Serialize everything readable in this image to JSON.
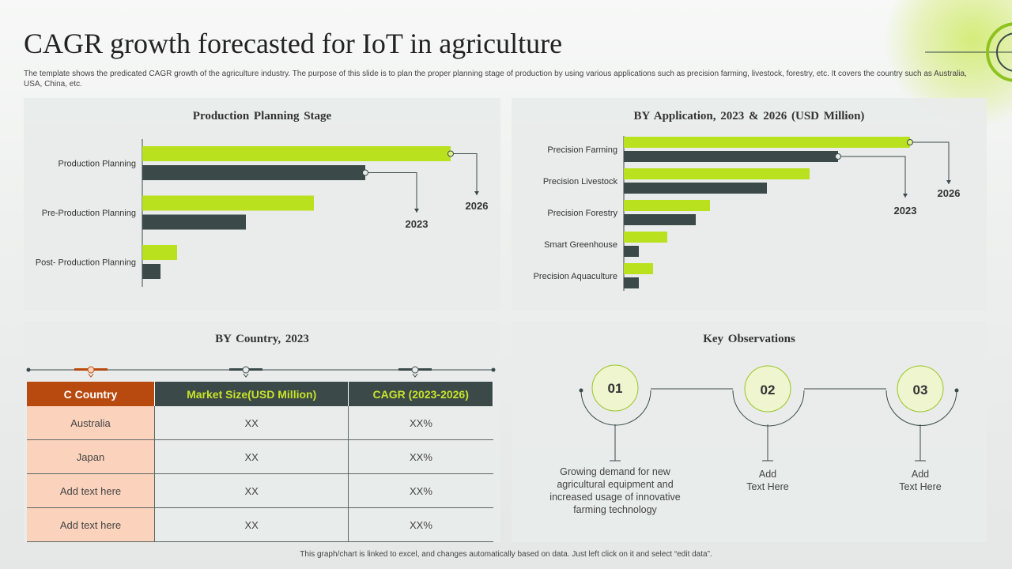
{
  "title": "CAGR growth forecasted for IoT in agriculture",
  "subtitle": "The template  shows the predicated CAGR growth of the agriculture industry. The purpose of this slide is to plan the proper planning stage of production by using various applications such as precision farming, livestock, forestry, etc. It covers the country such as Australia,  USA, China, etc.",
  "footer": "This graph/chart is linked to excel, and changes automatically based on data. Just left click on it and select “edit data”.",
  "colors": {
    "series_2026": "#b9e11e",
    "series_2023": "#3b4a48",
    "header_orange": "#b94a0f",
    "cell_peach": "#fbd3bd",
    "obs_circle": "#eef5cf"
  },
  "chart_data": [
    {
      "type": "bar",
      "orientation": "horizontal",
      "title": "Production  Planning  Stage",
      "categories": [
        "Production Planning",
        "Pre-Production Planning",
        "Post- Production Planning"
      ],
      "series": [
        {
          "name": "2026",
          "values": [
            390,
            217,
            44
          ]
        },
        {
          "name": "2023",
          "values": [
            282,
            131,
            23
          ]
        }
      ],
      "xlim": [
        0,
        420
      ],
      "annotations": [
        "2026",
        "2023"
      ]
    },
    {
      "type": "bar",
      "orientation": "horizontal",
      "title": "BY Application,  2023 & 2026 (USD Million)",
      "categories": [
        "Precision Farming",
        "Precision Livestock",
        "Precision Forestry",
        "Smart Greenhouse",
        "Precision Aquaculture"
      ],
      "series": [
        {
          "name": "2026",
          "values": [
            362,
            235,
            109,
            55,
            37
          ]
        },
        {
          "name": "2023",
          "values": [
            271,
            181,
            91,
            19,
            19
          ]
        }
      ],
      "xlim": [
        0,
        420
      ],
      "annotations": [
        "2026",
        "2023"
      ]
    }
  ],
  "country": {
    "title": "BY Country, 2023",
    "headers": [
      "C Country",
      "Market Size(USD Million)",
      "CAGR (2023-2026)"
    ],
    "rows": [
      [
        "Australia",
        "XX",
        "XX%"
      ],
      [
        "Japan",
        "XX",
        "XX%"
      ],
      [
        "Add text here",
        "XX",
        "XX%"
      ],
      [
        "Add text here",
        "XX",
        "XX%"
      ]
    ]
  },
  "observations": {
    "title": "Key Observations",
    "items": [
      {
        "num": "01",
        "text_lines": [
          "Growing demand for new",
          "agricultural equipment and",
          "increased usage of innovative",
          "farming technology"
        ]
      },
      {
        "num": "02",
        "text_lines": [
          "Add",
          "Text Here"
        ]
      },
      {
        "num": "03",
        "text_lines": [
          "Add",
          "Text Here"
        ]
      }
    ]
  }
}
